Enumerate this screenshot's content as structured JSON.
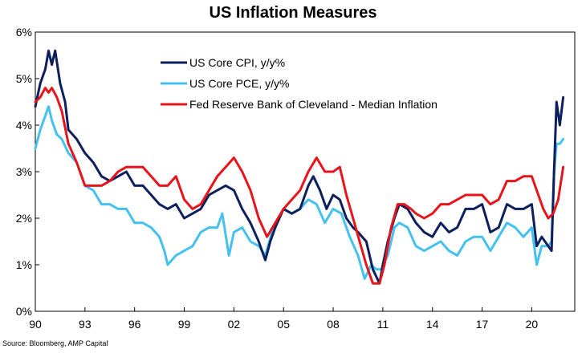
{
  "chart_data": {
    "type": "line",
    "title": "US Inflation Measures",
    "xlabel": "",
    "ylabel": "",
    "xlim": [
      1990,
      2022.6
    ],
    "ylim": [
      0,
      6
    ],
    "x_ticks": [
      {
        "value": 1990,
        "label": "90"
      },
      {
        "value": 1993,
        "label": "93"
      },
      {
        "value": 1996,
        "label": "96"
      },
      {
        "value": 1999,
        "label": "99"
      },
      {
        "value": 2002,
        "label": "02"
      },
      {
        "value": 2005,
        "label": "05"
      },
      {
        "value": 2008,
        "label": "08"
      },
      {
        "value": 2011,
        "label": "11"
      },
      {
        "value": 2014,
        "label": "14"
      },
      {
        "value": 2017,
        "label": "17"
      },
      {
        "value": 2020,
        "label": "20"
      }
    ],
    "y_ticks": [
      {
        "value": 0,
        "label": "0%"
      },
      {
        "value": 1,
        "label": "1%"
      },
      {
        "value": 2,
        "label": "2%"
      },
      {
        "value": 3,
        "label": "3%"
      },
      {
        "value": 4,
        "label": "4%"
      },
      {
        "value": 5,
        "label": "5%"
      },
      {
        "value": 6,
        "label": "6%"
      }
    ],
    "grid": false,
    "legend_position": "top-left",
    "series": [
      {
        "name": "US Core CPI, y/y%",
        "color": "#0d1f5c",
        "points": [
          [
            1990.0,
            4.4
          ],
          [
            1990.3,
            4.9
          ],
          [
            1990.6,
            5.2
          ],
          [
            1990.8,
            5.6
          ],
          [
            1991.0,
            5.3
          ],
          [
            1991.2,
            5.6
          ],
          [
            1991.5,
            4.9
          ],
          [
            1991.8,
            4.5
          ],
          [
            1992.0,
            3.9
          ],
          [
            1992.5,
            3.7
          ],
          [
            1993.0,
            3.4
          ],
          [
            1993.5,
            3.2
          ],
          [
            1994.0,
            2.9
          ],
          [
            1994.5,
            2.8
          ],
          [
            1995.0,
            2.9
          ],
          [
            1995.5,
            3.0
          ],
          [
            1996.0,
            2.7
          ],
          [
            1996.5,
            2.7
          ],
          [
            1997.0,
            2.5
          ],
          [
            1997.5,
            2.3
          ],
          [
            1998.0,
            2.2
          ],
          [
            1998.5,
            2.3
          ],
          [
            1999.0,
            2.0
          ],
          [
            1999.5,
            2.1
          ],
          [
            2000.0,
            2.2
          ],
          [
            2000.5,
            2.5
          ],
          [
            2001.0,
            2.6
          ],
          [
            2001.5,
            2.7
          ],
          [
            2002.0,
            2.6
          ],
          [
            2002.5,
            2.2
          ],
          [
            2003.0,
            1.9
          ],
          [
            2003.5,
            1.5
          ],
          [
            2003.9,
            1.1
          ],
          [
            2004.2,
            1.5
          ],
          [
            2004.5,
            1.8
          ],
          [
            2005.0,
            2.2
          ],
          [
            2005.5,
            2.1
          ],
          [
            2006.0,
            2.2
          ],
          [
            2006.5,
            2.7
          ],
          [
            2006.8,
            2.9
          ],
          [
            2007.2,
            2.6
          ],
          [
            2007.6,
            2.2
          ],
          [
            2008.0,
            2.5
          ],
          [
            2008.4,
            2.4
          ],
          [
            2008.8,
            2.0
          ],
          [
            2009.2,
            1.8
          ],
          [
            2009.5,
            1.7
          ],
          [
            2010.0,
            1.5
          ],
          [
            2010.4,
            0.9
          ],
          [
            2010.8,
            0.6
          ],
          [
            2011.0,
            1.0
          ],
          [
            2011.3,
            1.5
          ],
          [
            2011.7,
            2.0
          ],
          [
            2012.0,
            2.3
          ],
          [
            2012.5,
            2.2
          ],
          [
            2013.0,
            1.9
          ],
          [
            2013.5,
            1.7
          ],
          [
            2014.0,
            1.6
          ],
          [
            2014.5,
            1.9
          ],
          [
            2015.0,
            1.7
          ],
          [
            2015.5,
            1.8
          ],
          [
            2016.0,
            2.2
          ],
          [
            2016.5,
            2.2
          ],
          [
            2017.0,
            2.3
          ],
          [
            2017.5,
            1.7
          ],
          [
            2018.0,
            1.8
          ],
          [
            2018.5,
            2.3
          ],
          [
            2019.0,
            2.2
          ],
          [
            2019.5,
            2.2
          ],
          [
            2020.0,
            2.3
          ],
          [
            2020.3,
            1.4
          ],
          [
            2020.6,
            1.6
          ],
          [
            2021.0,
            1.4
          ],
          [
            2021.2,
            1.3
          ],
          [
            2021.35,
            3.0
          ],
          [
            2021.5,
            4.5
          ],
          [
            2021.7,
            4.0
          ],
          [
            2021.9,
            4.6
          ]
        ]
      },
      {
        "name": "US Core PCE, y/y%",
        "color": "#45c1f0",
        "points": [
          [
            1990.0,
            3.5
          ],
          [
            1990.3,
            3.9
          ],
          [
            1990.6,
            4.2
          ],
          [
            1990.8,
            4.4
          ],
          [
            1991.0,
            4.1
          ],
          [
            1991.3,
            3.8
          ],
          [
            1991.6,
            3.7
          ],
          [
            1992.0,
            3.4
          ],
          [
            1992.5,
            3.2
          ],
          [
            1993.0,
            2.7
          ],
          [
            1993.5,
            2.6
          ],
          [
            1994.0,
            2.3
          ],
          [
            1994.5,
            2.3
          ],
          [
            1995.0,
            2.2
          ],
          [
            1995.5,
            2.2
          ],
          [
            1996.0,
            1.9
          ],
          [
            1996.5,
            1.9
          ],
          [
            1997.0,
            1.8
          ],
          [
            1997.5,
            1.6
          ],
          [
            1997.8,
            1.3
          ],
          [
            1998.0,
            1.0
          ],
          [
            1998.5,
            1.2
          ],
          [
            1999.0,
            1.3
          ],
          [
            1999.5,
            1.4
          ],
          [
            2000.0,
            1.7
          ],
          [
            2000.5,
            1.8
          ],
          [
            2001.0,
            1.8
          ],
          [
            2001.3,
            2.1
          ],
          [
            2001.7,
            1.2
          ],
          [
            2002.0,
            1.7
          ],
          [
            2002.5,
            1.8
          ],
          [
            2003.0,
            1.5
          ],
          [
            2003.5,
            1.4
          ],
          [
            2003.9,
            1.2
          ],
          [
            2004.3,
            1.7
          ],
          [
            2004.7,
            2.0
          ],
          [
            2005.0,
            2.2
          ],
          [
            2005.5,
            2.1
          ],
          [
            2006.0,
            2.2
          ],
          [
            2006.5,
            2.4
          ],
          [
            2007.0,
            2.3
          ],
          [
            2007.5,
            1.9
          ],
          [
            2008.0,
            2.2
          ],
          [
            2008.5,
            2.1
          ],
          [
            2009.0,
            1.6
          ],
          [
            2009.5,
            1.2
          ],
          [
            2009.9,
            0.7
          ],
          [
            2010.3,
            1.0
          ],
          [
            2010.6,
            0.9
          ],
          [
            2010.9,
            0.9
          ],
          [
            2011.3,
            1.2
          ],
          [
            2011.7,
            1.8
          ],
          [
            2012.0,
            1.9
          ],
          [
            2012.5,
            1.8
          ],
          [
            2013.0,
            1.4
          ],
          [
            2013.5,
            1.3
          ],
          [
            2014.0,
            1.4
          ],
          [
            2014.5,
            1.5
          ],
          [
            2015.0,
            1.3
          ],
          [
            2015.5,
            1.2
          ],
          [
            2016.0,
            1.5
          ],
          [
            2016.5,
            1.6
          ],
          [
            2017.0,
            1.6
          ],
          [
            2017.5,
            1.3
          ],
          [
            2018.0,
            1.6
          ],
          [
            2018.5,
            1.9
          ],
          [
            2019.0,
            1.8
          ],
          [
            2019.5,
            1.6
          ],
          [
            2020.0,
            1.8
          ],
          [
            2020.3,
            1.0
          ],
          [
            2020.6,
            1.4
          ],
          [
            2021.0,
            1.4
          ],
          [
            2021.2,
            1.5
          ],
          [
            2021.35,
            3.0
          ],
          [
            2021.5,
            3.6
          ],
          [
            2021.7,
            3.6
          ],
          [
            2021.9,
            3.7
          ]
        ]
      },
      {
        "name": "Fed Reserve Bank of Cleveland - Median Inflation",
        "color": "#e8141b",
        "points": [
          [
            1990.0,
            4.5
          ],
          [
            1990.3,
            4.6
          ],
          [
            1990.6,
            4.8
          ],
          [
            1990.8,
            4.7
          ],
          [
            1991.0,
            4.8
          ],
          [
            1991.3,
            4.6
          ],
          [
            1991.6,
            4.3
          ],
          [
            1992.0,
            3.6
          ],
          [
            1992.5,
            3.2
          ],
          [
            1993.0,
            2.7
          ],
          [
            1993.5,
            2.7
          ],
          [
            1994.0,
            2.7
          ],
          [
            1994.5,
            2.8
          ],
          [
            1995.0,
            3.0
          ],
          [
            1995.5,
            3.1
          ],
          [
            1996.0,
            3.1
          ],
          [
            1996.5,
            3.1
          ],
          [
            1997.0,
            2.9
          ],
          [
            1997.5,
            2.7
          ],
          [
            1998.0,
            2.7
          ],
          [
            1998.5,
            2.9
          ],
          [
            1999.0,
            2.4
          ],
          [
            1999.5,
            2.2
          ],
          [
            2000.0,
            2.3
          ],
          [
            2000.5,
            2.6
          ],
          [
            2001.0,
            2.9
          ],
          [
            2001.5,
            3.1
          ],
          [
            2002.0,
            3.3
          ],
          [
            2002.5,
            3.0
          ],
          [
            2003.0,
            2.6
          ],
          [
            2003.5,
            2.0
          ],
          [
            2004.0,
            1.6
          ],
          [
            2004.5,
            1.9
          ],
          [
            2005.0,
            2.2
          ],
          [
            2005.5,
            2.4
          ],
          [
            2006.0,
            2.6
          ],
          [
            2006.5,
            3.0
          ],
          [
            2007.0,
            3.3
          ],
          [
            2007.5,
            3.0
          ],
          [
            2008.0,
            3.0
          ],
          [
            2008.4,
            3.1
          ],
          [
            2008.8,
            2.5
          ],
          [
            2009.2,
            2.0
          ],
          [
            2009.6,
            1.5
          ],
          [
            2010.0,
            1.0
          ],
          [
            2010.4,
            0.6
          ],
          [
            2010.8,
            0.6
          ],
          [
            2011.1,
            1.0
          ],
          [
            2011.5,
            1.8
          ],
          [
            2011.9,
            2.3
          ],
          [
            2012.3,
            2.3
          ],
          [
            2012.7,
            2.2
          ],
          [
            2013.0,
            2.1
          ],
          [
            2013.5,
            2.0
          ],
          [
            2014.0,
            2.1
          ],
          [
            2014.5,
            2.3
          ],
          [
            2015.0,
            2.3
          ],
          [
            2015.5,
            2.4
          ],
          [
            2016.0,
            2.5
          ],
          [
            2016.5,
            2.5
          ],
          [
            2017.0,
            2.5
          ],
          [
            2017.5,
            2.3
          ],
          [
            2018.0,
            2.4
          ],
          [
            2018.5,
            2.8
          ],
          [
            2019.0,
            2.8
          ],
          [
            2019.5,
            2.9
          ],
          [
            2020.0,
            2.9
          ],
          [
            2020.3,
            2.6
          ],
          [
            2020.7,
            2.2
          ],
          [
            2021.0,
            2.0
          ],
          [
            2021.3,
            2.1
          ],
          [
            2021.6,
            2.4
          ],
          [
            2021.9,
            3.1
          ]
        ]
      }
    ]
  },
  "source_note": "Source: Bloomberg, AMP Capital"
}
